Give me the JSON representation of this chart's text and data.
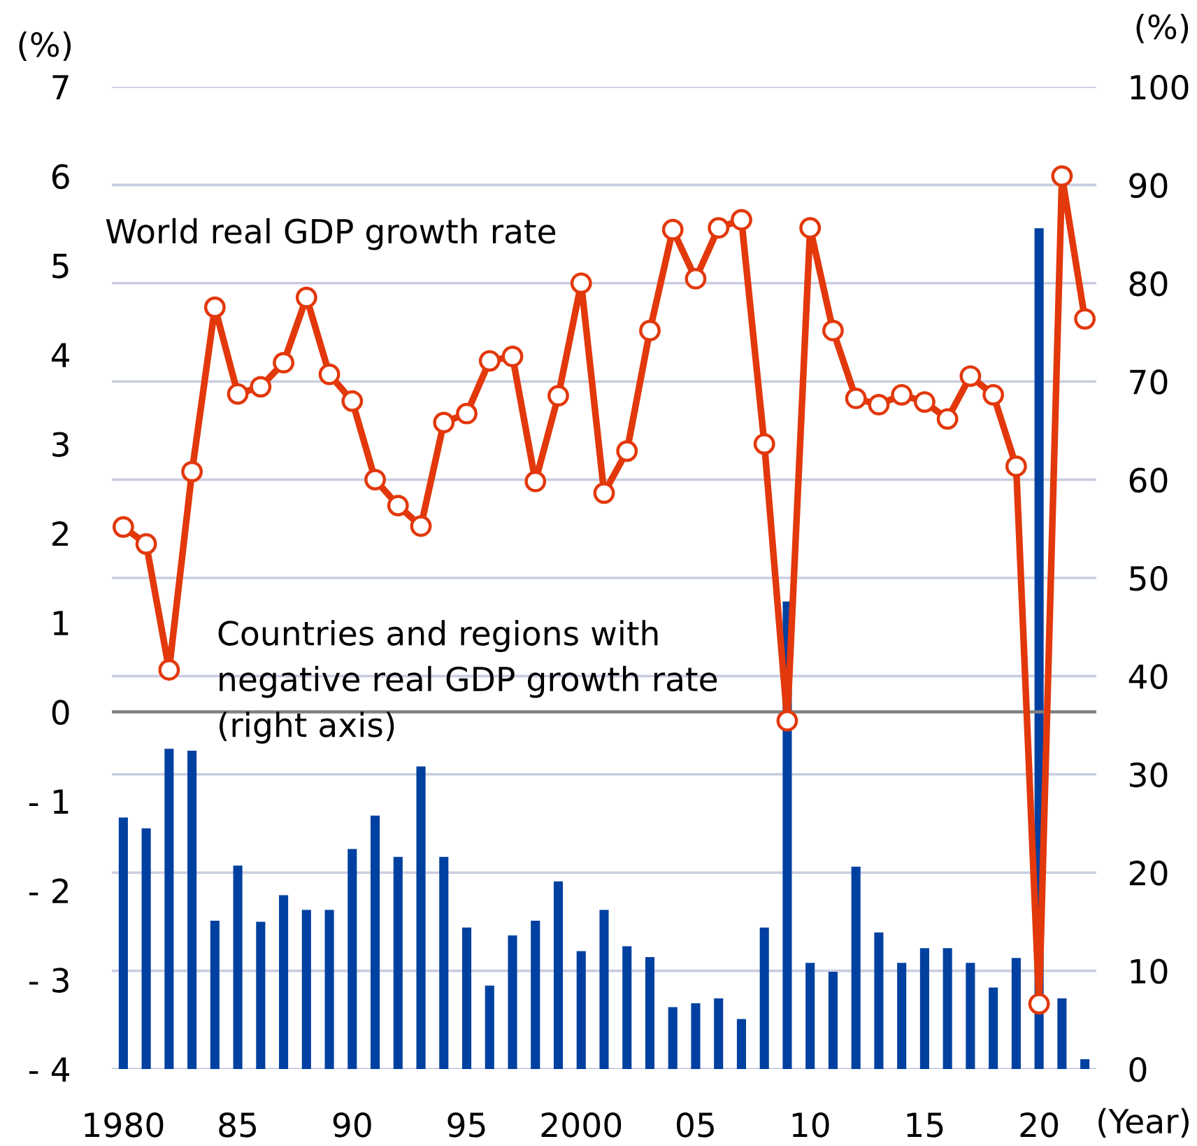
{
  "chart_data": {
    "type": "line",
    "xlabel": "(Year)",
    "ylabel": "(%)",
    "y2label": "(%)",
    "x": [
      1980,
      1981,
      1982,
      1983,
      1984,
      1985,
      1986,
      1987,
      1988,
      1989,
      1990,
      1991,
      1992,
      1993,
      1994,
      1995,
      1996,
      1997,
      1998,
      1999,
      2000,
      2001,
      2002,
      2003,
      2004,
      2005,
      2006,
      2007,
      2008,
      2009,
      2010,
      2011,
      2012,
      2013,
      2014,
      2015,
      2016,
      2017,
      2018,
      2019,
      2020,
      2021,
      2022
    ],
    "xlim": [
      1979.5,
      2022.5
    ],
    "xticks": [
      1980,
      {
        "value": 1985,
        "label": "85"
      },
      {
        "value": 1990,
        "label": "90"
      },
      {
        "value": 1995,
        "label": "95"
      },
      2000,
      {
        "value": 2005,
        "label": "05"
      },
      {
        "value": 2010,
        "label": "10"
      },
      {
        "value": 2015,
        "label": "15"
      },
      {
        "value": 2020,
        "label": "20"
      }
    ],
    "ylim": [
      -4,
      7
    ],
    "yticks": [
      {
        "value": -4,
        "label": "- 4"
      },
      {
        "value": -3,
        "label": "- 3"
      },
      {
        "value": -2,
        "label": "- 2"
      },
      {
        "value": -1,
        "label": "- 1"
      },
      0,
      1,
      2,
      3,
      4,
      5,
      6,
      7
    ],
    "y2lim": [
      0,
      100
    ],
    "y2ticks": [
      0,
      10,
      20,
      30,
      40,
      50,
      60,
      70,
      80,
      90,
      100
    ],
    "grid": "y",
    "series": [
      {
        "name": "Countries and regions with\nnegative real GDP growth rate\n(right axis)",
        "type": "bar",
        "axis": "y2",
        "color": "#0040a0",
        "values": [
          25.6,
          24.5,
          32.6,
          32.4,
          15.1,
          20.7,
          15.0,
          17.7,
          16.2,
          16.2,
          22.4,
          25.8,
          21.6,
          30.8,
          21.6,
          14.4,
          8.5,
          13.6,
          15.1,
          19.1,
          12.0,
          16.2,
          12.5,
          11.4,
          6.3,
          6.7,
          7.2,
          5.1,
          14.4,
          47.6,
          10.8,
          9.9,
          20.6,
          13.9,
          10.8,
          12.3,
          12.3,
          10.8,
          8.3,
          11.3,
          85.6,
          7.2,
          1.0
        ]
      },
      {
        "name": "World real GDP growth rate",
        "axis": "y",
        "color": "#e2380b",
        "marker": "circle",
        "line_style": "solid",
        "values": [
          2.07,
          1.88,
          0.47,
          2.69,
          4.53,
          3.56,
          3.64,
          3.91,
          4.64,
          3.78,
          3.48,
          2.6,
          2.31,
          2.08,
          3.24,
          3.34,
          3.93,
          3.98,
          2.58,
          3.54,
          4.8,
          2.45,
          2.92,
          4.27,
          5.4,
          4.85,
          5.42,
          5.51,
          3.0,
          -0.1,
          5.42,
          4.27,
          3.51,
          3.44,
          3.55,
          3.47,
          3.28,
          3.76,
          3.55,
          2.75,
          -3.27,
          6.0,
          4.4
        ]
      }
    ],
    "ref_lines": [
      {
        "axis": "y",
        "value": 0,
        "color": "#808080"
      }
    ]
  }
}
